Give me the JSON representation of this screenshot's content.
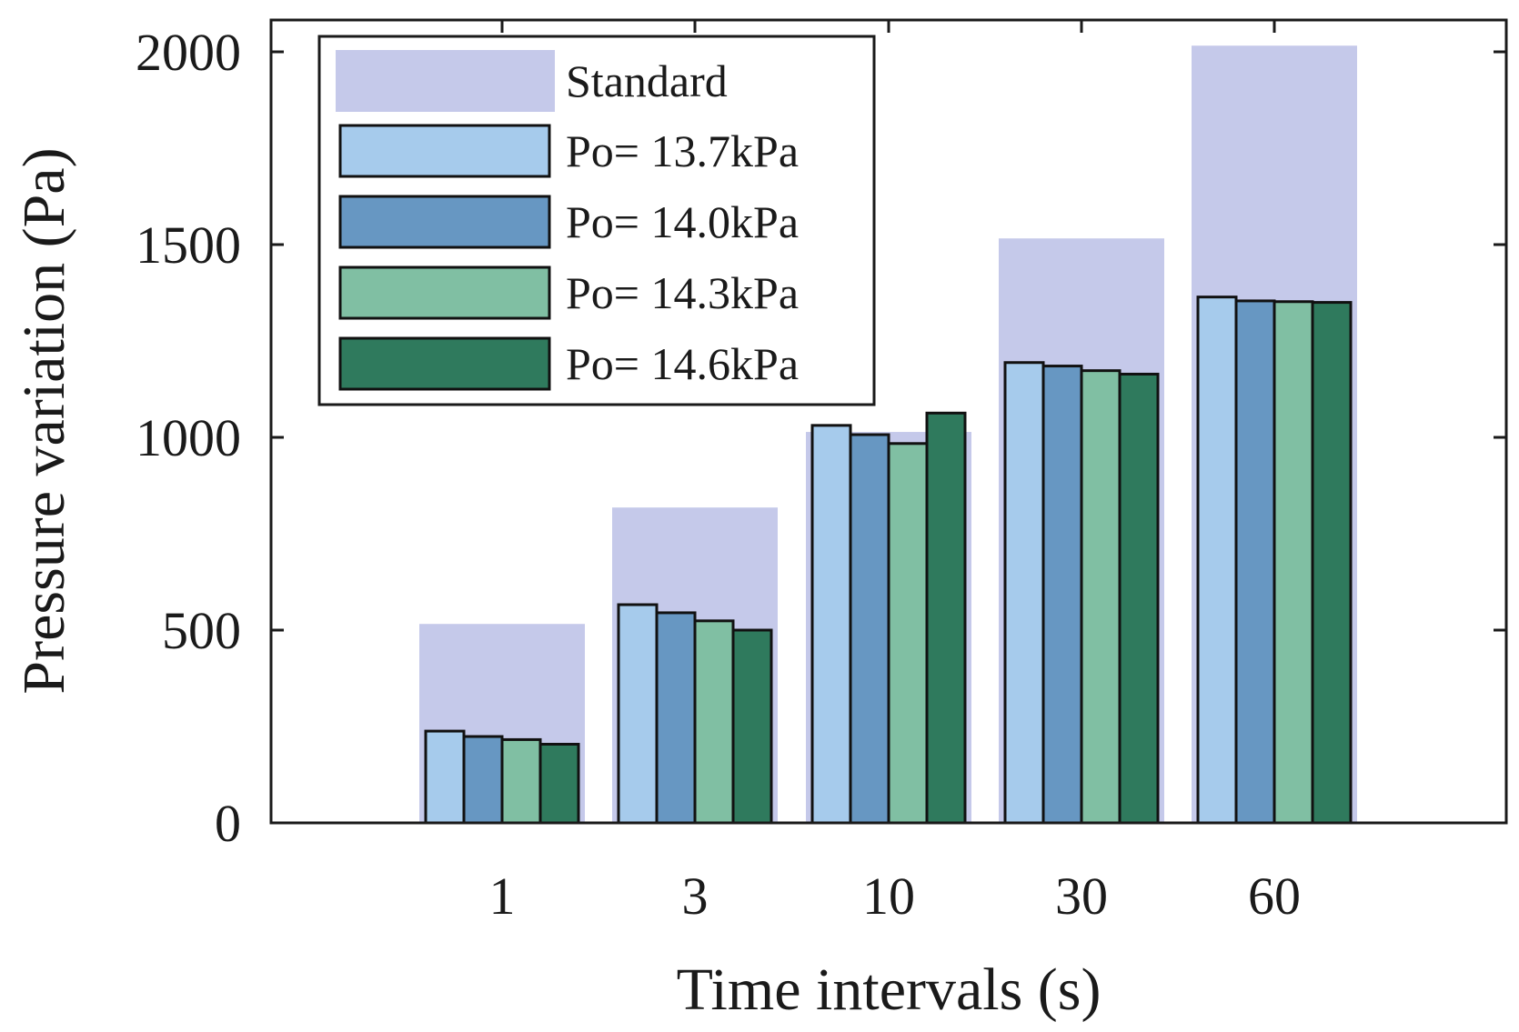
{
  "chart_data": {
    "type": "bar",
    "title": "",
    "xlabel": "Time intervals (s)",
    "ylabel": "Pressure variation (Pa)",
    "ylim": [
      0,
      2000
    ],
    "yticks": [
      0,
      500,
      1000,
      1500,
      2000
    ],
    "categories": [
      "1",
      "3",
      "10",
      "30",
      "60"
    ],
    "standard": {
      "name": "Standard",
      "color": "#c5c9ea",
      "values": [
        516,
        818,
        1014,
        1516,
        2016
      ]
    },
    "series": [
      {
        "name": "Po= 13.7kPa",
        "color": "#a6cbec",
        "values": [
          238,
          566,
          1031,
          1194,
          1364
        ]
      },
      {
        "name": "Po= 14.0kPa",
        "color": "#6797c2",
        "values": [
          224,
          545,
          1007,
          1185,
          1354
        ]
      },
      {
        "name": "Po= 14.3kPa",
        "color": "#80bfa3",
        "values": [
          216,
          524,
          984,
          1173,
          1352
        ]
      },
      {
        "name": "Po= 14.6kPa",
        "color": "#2f7a5d",
        "values": [
          204,
          500,
          1063,
          1164,
          1350
        ]
      }
    ],
    "legend_position": "top-left",
    "grid": false
  }
}
